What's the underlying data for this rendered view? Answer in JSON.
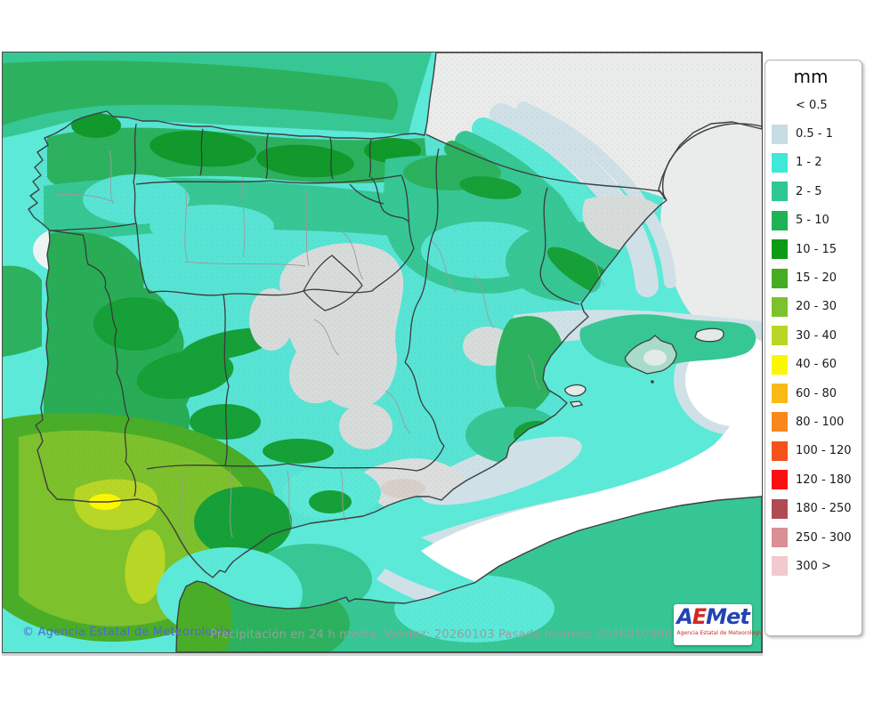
{
  "map": {
    "copyright": "© Agencia Estatal de Meteorología",
    "caption": "Precipitación en 24 h media. Validez: 20260103 Pasada modelo: 2026010300",
    "logo": {
      "text_a": "A",
      "text_e": "E",
      "text_met": "Met",
      "subtitle": "Agencia Estatal de Meteorología"
    }
  },
  "legend": {
    "title": "mm",
    "entries": [
      {
        "label": "< 0.5",
        "color": null
      },
      {
        "label": "0.5 - 1",
        "color": "#c7dce3"
      },
      {
        "label": "1 - 2",
        "color": "#3fe8d8"
      },
      {
        "label": "2 - 5",
        "color": "#2ec795"
      },
      {
        "label": "5 - 10",
        "color": "#1fb257"
      },
      {
        "label": "10 - 15",
        "color": "#0d9a14"
      },
      {
        "label": "15 - 20",
        "color": "#47ac22"
      },
      {
        "label": "20 - 30",
        "color": "#7dc12c"
      },
      {
        "label": "30 - 40",
        "color": "#b8d626"
      },
      {
        "label": "40 - 60",
        "color": "#fbf702"
      },
      {
        "label": "60 - 80",
        "color": "#fbb918"
      },
      {
        "label": "80 - 100",
        "color": "#f8881c"
      },
      {
        "label": "100 - 120",
        "color": "#f4531c"
      },
      {
        "label": "120 - 180",
        "color": "#fa0f12"
      },
      {
        "label": "180 - 250",
        "color": "#b04b51"
      },
      {
        "label": "250 - 300",
        "color": "#d98f95"
      },
      {
        "label": "300 >",
        "color": "#f0cad0"
      }
    ]
  },
  "palette": {
    "sea_cyan": "#5ce9d8",
    "land_cyan": "#58e4d4",
    "pale": "#cfe1e7",
    "white": "#ffffff",
    "teal": "#36c795",
    "green": "#2cb25f",
    "green_mid": "#28ad56",
    "dark_green": "#11992c",
    "dark_green2": "#16a038",
    "g15": "#4aad27",
    "g20": "#7dc12c",
    "g30": "#b8d626",
    "g40": "#fbf702",
    "gray_dry": "#d7dcdb",
    "gray_dry2": "#dbdedd",
    "france": "#eaebeb",
    "alboran_pale": "#dfe8ea",
    "island_pale": "#e2ebe7",
    "mallorca": "#a8dbc9",
    "nw_pale": "#eef4f4",
    "speck_pink": "#d8cfc8",
    "coast": "#3f3f3f",
    "region_border": "#3a3a3a",
    "province_border": "#9b9b9b"
  },
  "colors": {
    "copyright_text": "#4d68d8",
    "caption_text": "#989d9d",
    "logo_blue": "#2343b4",
    "logo_red": "#d3281f"
  }
}
